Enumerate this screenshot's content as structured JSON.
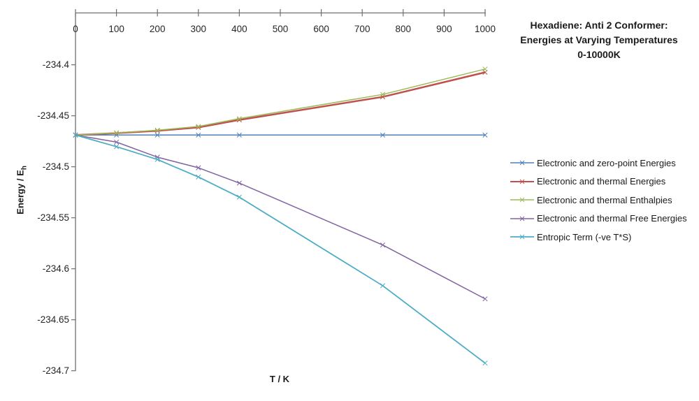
{
  "title": {
    "lines": [
      "Hexadiene: Anti 2 Conformer:",
      "Energies at Varying Temperatures",
      "0-10000K"
    ]
  },
  "axes": {
    "x": {
      "label": "T / K",
      "tick_values": [
        0,
        100,
        200,
        300,
        400,
        500,
        600,
        700,
        800,
        900,
        1000
      ],
      "tick_labels": [
        "0",
        "100",
        "200",
        "300",
        "400",
        "500",
        "600",
        "700",
        "800",
        "900",
        "1000"
      ]
    },
    "y": {
      "label": "Energy / E",
      "label_sub": "h",
      "tick_values": [
        -234.4,
        -234.45,
        -234.5,
        -234.55,
        -234.6,
        -234.65,
        -234.7
      ],
      "tick_labels": [
        "-234.4",
        "-234.45",
        "-234.5",
        "-234.55",
        "-234.6",
        "-234.65",
        "-234.7"
      ]
    }
  },
  "colors": {
    "axis_line": "#6f6f6f",
    "tick_text": "#262626",
    "background": "#ffffff"
  },
  "chart_data": {
    "type": "line",
    "title": "Hexadiene: Anti 2 Conformer: Energies at Varying Temperatures 0-10000K",
    "xlabel": "T / K",
    "ylabel": "Energy / Eh",
    "xlim": [
      0,
      1000
    ],
    "ylim": [
      -234.7,
      -234.35
    ],
    "grid": false,
    "legend_position": "right",
    "marker": "x",
    "x": [
      0,
      100,
      200,
      300,
      400,
      750,
      1000
    ],
    "series": [
      {
        "name": "Electronic and zero-point Energies",
        "color": "#4F81BD",
        "line_width": 1.5,
        "values": [
          -234.4689,
          -234.4689,
          -234.4689,
          -234.4689,
          -234.4689,
          -234.4689,
          -234.4689
        ]
      },
      {
        "name": "Electronic and thermal Energies",
        "color": "#C0504D",
        "line_width": 2.5,
        "values": [
          -234.4689,
          -234.467,
          -234.4648,
          -234.4614,
          -234.4541,
          -234.4315,
          -234.4074
        ]
      },
      {
        "name": "Electronic and thermal Enthalpies",
        "color": "#9BBB59",
        "line_width": 1.5,
        "values": [
          -234.4689,
          -234.4667,
          -234.4642,
          -234.4605,
          -234.4528,
          -234.4291,
          -234.4042
        ]
      },
      {
        "name": "Electronic and thermal Free Energies",
        "color": "#8064A2",
        "line_width": 1.5,
        "values": [
          -234.4689,
          -234.4758,
          -234.4906,
          -234.501,
          -234.516,
          -234.5767,
          -234.6295
        ]
      },
      {
        "name": "Entropic Term (-ve T*S)",
        "color": "#4BACC6",
        "line_width": 1.75,
        "values": [
          -234.4689,
          -234.4803,
          -234.4929,
          -234.51,
          -234.5298,
          -234.6166,
          -234.6925
        ]
      }
    ]
  }
}
